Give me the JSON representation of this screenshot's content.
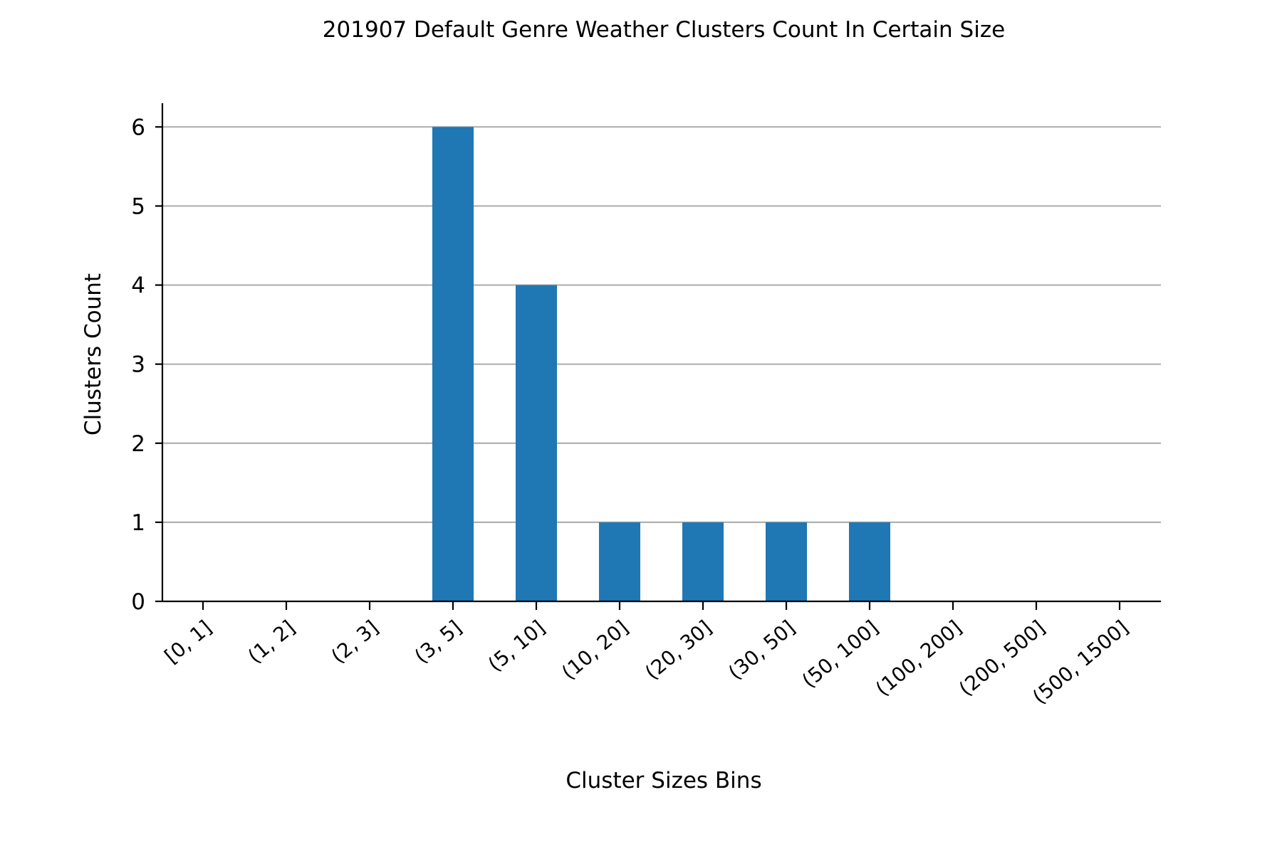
{
  "chart_data": {
    "type": "bar",
    "title": "201907 Default Genre Weather Clusters Count In Certain Size",
    "xlabel": "Cluster Sizes Bins",
    "ylabel": "Clusters Count",
    "categories": [
      "[0, 1]",
      "(1, 2]",
      "(2, 3]",
      "(3, 5]",
      "(5, 10]",
      "(10, 20]",
      "(20, 30]",
      "(30, 50]",
      "(50, 100]",
      "(100, 200]",
      "(200, 500]",
      "(500, 1500]"
    ],
    "values": [
      0,
      0,
      0,
      6,
      4,
      1,
      1,
      1,
      1,
      0,
      0,
      0
    ],
    "yticks": [
      0,
      1,
      2,
      3,
      4,
      5,
      6
    ],
    "ylim": [
      0,
      6.3
    ],
    "grid": "horizontal",
    "bar_color": "#1f77b4",
    "grid_color": "#b0b0b0"
  }
}
